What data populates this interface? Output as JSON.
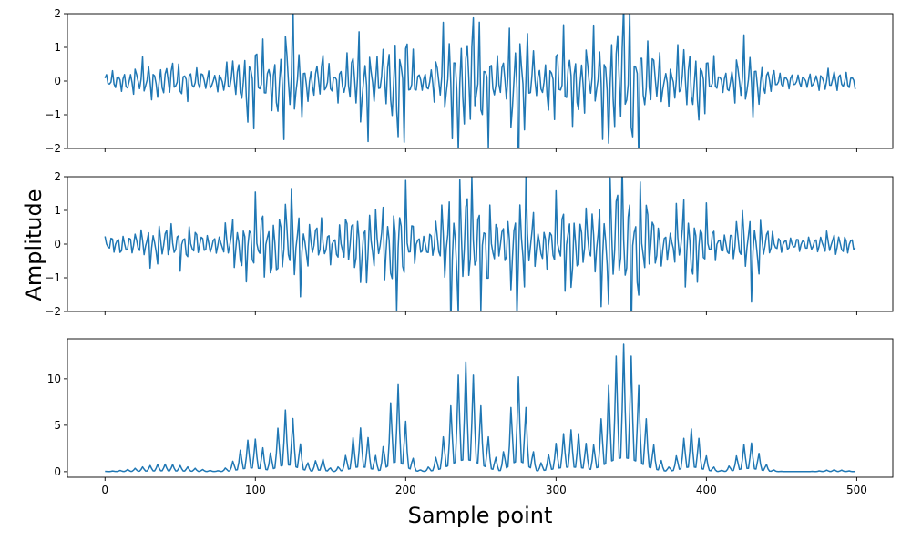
{
  "figure": {
    "ylabel": "Amplitude",
    "xlabel": "Sample point"
  },
  "chart_data": [
    {
      "type": "line",
      "ylim": [
        -2,
        2
      ],
      "xlim": [
        -25,
        524
      ],
      "yticks": [
        -2,
        -1,
        0,
        1,
        2
      ],
      "ytick_labels": [
        "−2",
        "−1",
        "0",
        "1",
        "2"
      ],
      "xticks": [
        0,
        100,
        200,
        300,
        400,
        500
      ],
      "xtick_labels": [],
      "grid": false,
      "color": "#1f77b4",
      "series": [
        {
          "x_start": 0,
          "x_end": 499,
          "n_points": 500,
          "envelope_source": "panel_3",
          "carrier_cycles_per_sample": 0.25,
          "phase": 0.3,
          "values": []
        }
      ]
    },
    {
      "type": "line",
      "ylim": [
        -2,
        2
      ],
      "xlim": [
        -25,
        524
      ],
      "yticks": [
        -2,
        -1,
        0,
        1,
        2
      ],
      "ytick_labels": [
        "−2",
        "−1",
        "0",
        "1",
        "2"
      ],
      "xticks": [
        0,
        100,
        200,
        300,
        400,
        500
      ],
      "xtick_labels": [],
      "grid": false,
      "color": "#1f77b4",
      "series": [
        {
          "x_start": 0,
          "x_end": 499,
          "n_points": 500,
          "envelope_source": "panel_3",
          "carrier_cycles_per_sample": 0.25,
          "phase": 1.1,
          "values": []
        }
      ]
    },
    {
      "type": "line",
      "ylim": [
        -0.6,
        14.3
      ],
      "xlim": [
        -25,
        524
      ],
      "yticks": [
        0,
        5,
        10
      ],
      "ytick_labels": [
        "0",
        "5",
        "10"
      ],
      "xticks": [
        0,
        100,
        200,
        300,
        400,
        500
      ],
      "xtick_labels": [
        "0",
        "100",
        "200",
        "300",
        "400",
        "500"
      ],
      "grid": false,
      "color": "#1f77b4",
      "series": [
        {
          "x_start": 0,
          "x_end": 499,
          "n_points": 500,
          "ripple_period_samples": 5,
          "bursts": [
            {
              "center": 40,
              "width": 22,
              "peak": 0.8
            },
            {
              "center": 98,
              "width": 12,
              "peak": 3.6
            },
            {
              "center": 121,
              "width": 10,
              "peak": 6.7
            },
            {
              "center": 143,
              "width": 6,
              "peak": 1.5
            },
            {
              "center": 170,
              "width": 10,
              "peak": 4.7
            },
            {
              "center": 194,
              "width": 8,
              "peak": 9.5
            },
            {
              "center": 240,
              "width": 14,
              "peak": 11.8
            },
            {
              "center": 275,
              "width": 8,
              "peak": 10.2
            },
            {
              "center": 310,
              "width": 16,
              "peak": 4.5
            },
            {
              "center": 345,
              "width": 16,
              "peak": 13.7
            },
            {
              "center": 390,
              "width": 10,
              "peak": 4.6
            },
            {
              "center": 428,
              "width": 10,
              "peak": 3.2
            },
            {
              "center": 485,
              "width": 10,
              "peak": 0.2
            }
          ]
        }
      ]
    }
  ]
}
